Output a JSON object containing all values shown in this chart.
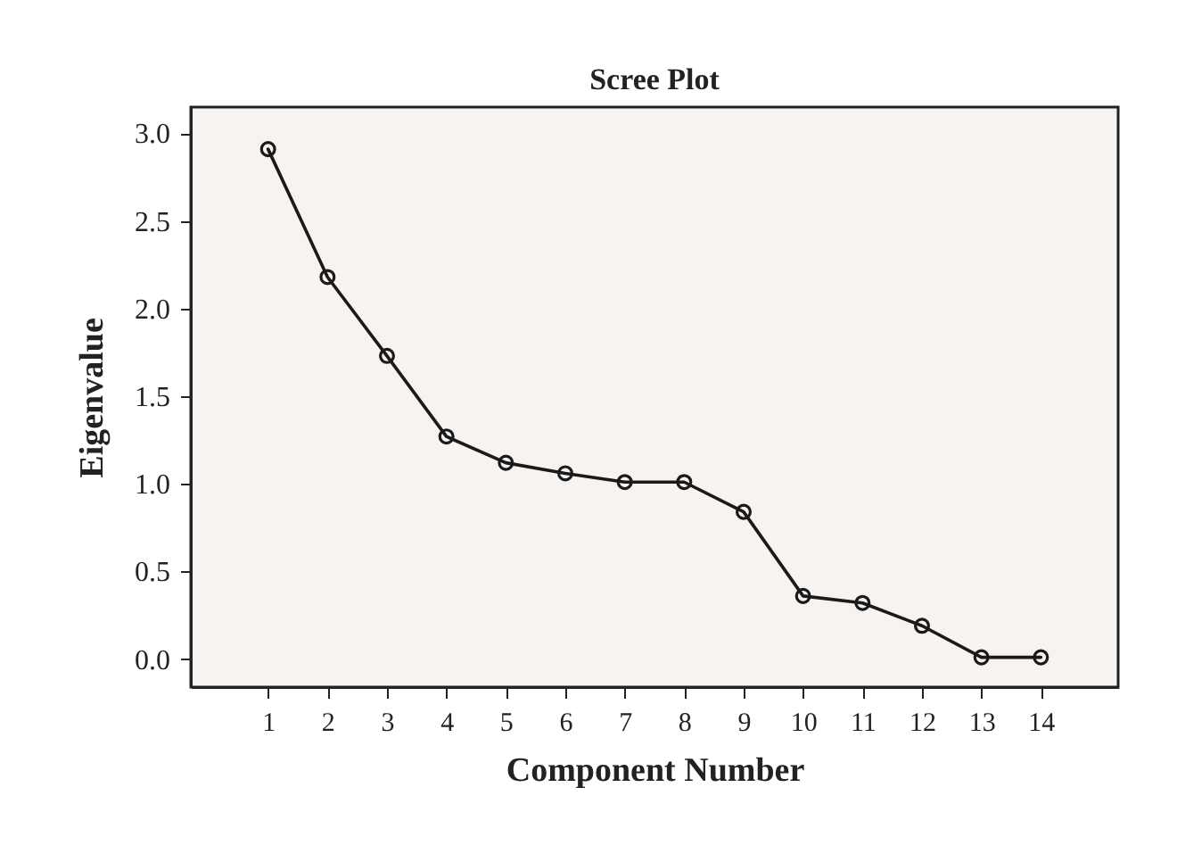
{
  "chart_data": {
    "type": "line",
    "title": "Scree Plot",
    "xlabel": "Component Number",
    "ylabel": "Eigenvalue",
    "x": [
      1,
      2,
      3,
      4,
      5,
      6,
      7,
      8,
      9,
      10,
      11,
      12,
      13,
      14
    ],
    "series": [
      {
        "color": "#1a1a1a",
        "values": [
          2.91,
          2.18,
          1.73,
          1.27,
          1.12,
          1.06,
          1.01,
          1.01,
          0.84,
          0.36,
          0.32,
          0.19,
          0.01,
          0.01
        ]
      }
    ],
    "xlim": [
      -0.3,
      15.3
    ],
    "xticks": [
      1,
      2,
      3,
      4,
      5,
      6,
      7,
      8,
      9,
      10,
      11,
      12,
      13,
      14
    ],
    "ylim": [
      -0.16,
      3.15
    ],
    "yticks": [
      {
        "value": 0,
        "label": "0.0"
      },
      {
        "value": 0.5,
        "label": "0.5"
      },
      {
        "value": 1,
        "label": "1.0"
      },
      {
        "value": 1.5,
        "label": "1.5"
      },
      {
        "value": 2,
        "label": "2.0"
      },
      {
        "value": 2.5,
        "label": "2.5"
      },
      {
        "value": 3,
        "label": "3.0"
      }
    ],
    "marker": "circle"
  }
}
